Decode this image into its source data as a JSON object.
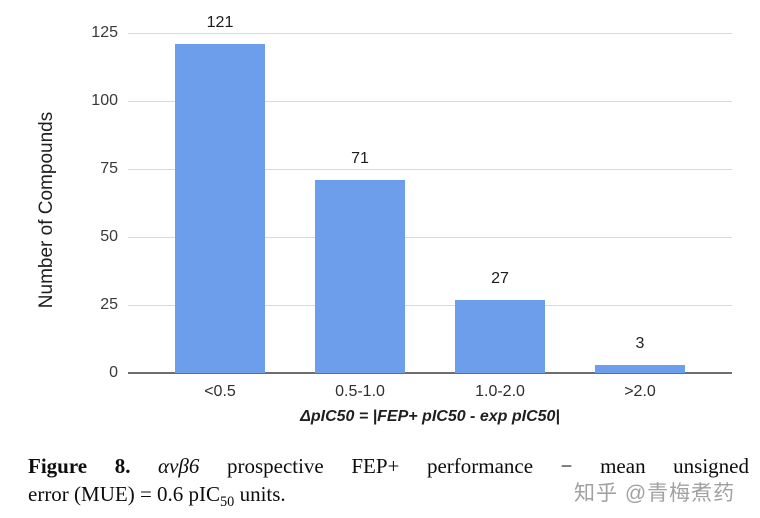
{
  "chart_data": {
    "type": "bar",
    "title": "",
    "categories": [
      "<0.5",
      "0.5-1.0",
      "1.0-2.0",
      ">2.0"
    ],
    "values": [
      121,
      71,
      27,
      3
    ],
    "data_labels": [
      "121",
      "71",
      "27",
      "3"
    ],
    "xlabel": "ΔpIC50 = |FEP+ pIC50 - exp pIC50|",
    "ylabel": "Number of Compounds",
    "ylim": [
      0,
      125
    ],
    "yticks": [
      0,
      25,
      50,
      75,
      100,
      125
    ],
    "grid": true,
    "legend_position": "none",
    "bar_color": "#6d9eeb",
    "gridline_color": "#d9d9d9",
    "baseline_color": "#6e6e6e"
  },
  "caption": {
    "figure_label": "Figure 8.",
    "protein_italic": "αvβ6",
    "line1_rest": "prospective FEP+ performance − mean unsigned",
    "line2_pre": "error (MUE) = 0.6 pIC",
    "line2_sub": "50",
    "line2_post": " units."
  },
  "watermark": {
    "text": "知乎 @青梅煮药"
  }
}
